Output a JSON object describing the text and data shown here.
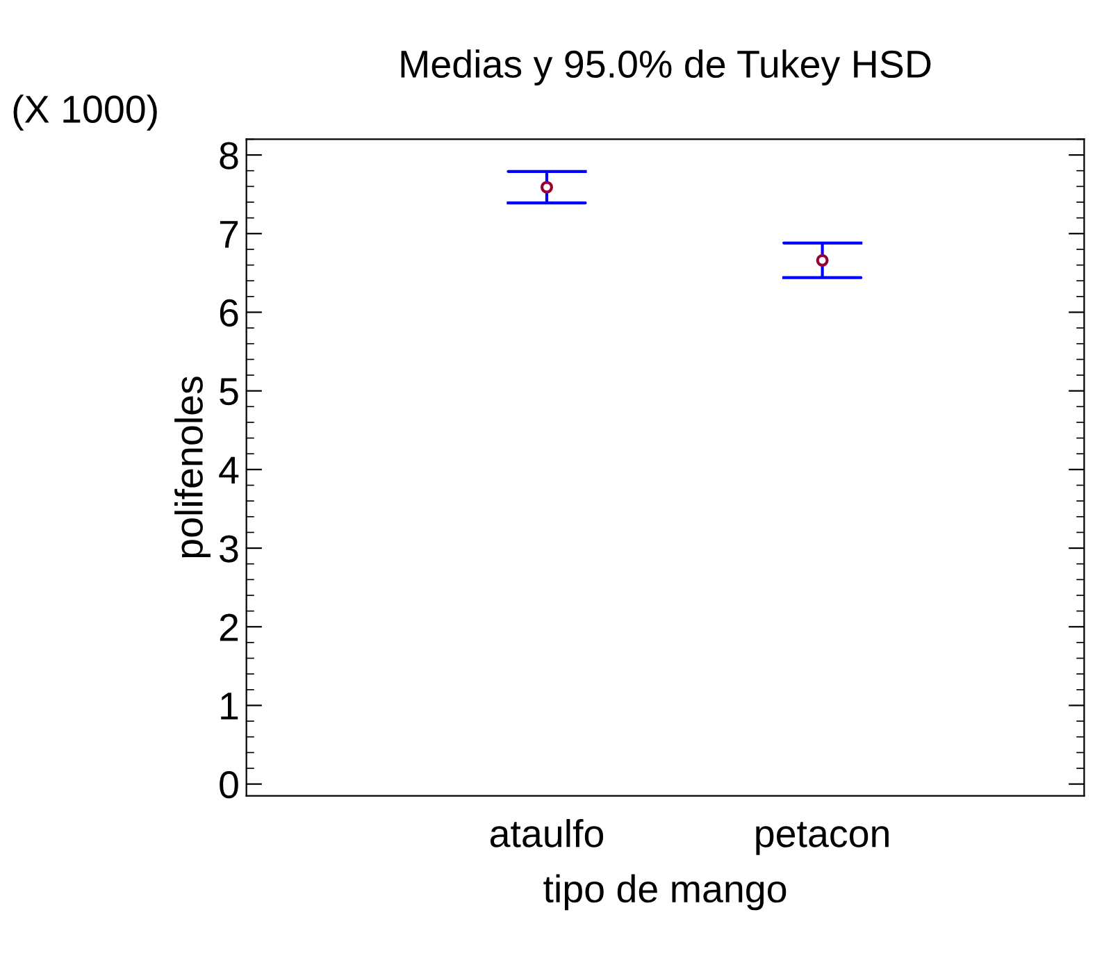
{
  "chart_data": {
    "type": "scatter",
    "title": "Medias y 95.0% de Tukey HSD",
    "xlabel": "tipo de mango",
    "ylabel": "polifenoles",
    "annotations": [
      "(X 1000)"
    ],
    "categories": [
      "ataulfo",
      "petacon"
    ],
    "values": [
      7.59,
      6.66
    ],
    "errors": [
      0.2,
      0.22
    ],
    "color": "#0000ff",
    "colors": [
      "#990033",
      "#990033"
    ],
    "ylim": [
      -0.15,
      8.2
    ],
    "yticks": [
      0,
      1,
      2,
      3,
      4,
      5,
      6,
      7,
      8
    ],
    "grid": false,
    "marker": "circle"
  }
}
